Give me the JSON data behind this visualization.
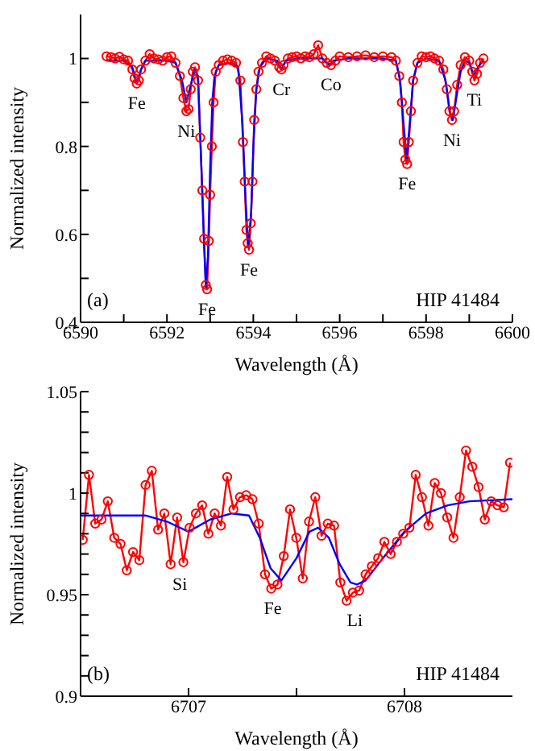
{
  "chart_data": [
    {
      "type": "line",
      "xlabel": "Wavelength (Å)",
      "ylabel": "Normalized intensity",
      "xlim": [
        6590,
        6600
      ],
      "ylim": [
        0.4,
        1.1
      ],
      "xticks": [
        6590,
        {
          "value": 6591,
          "label": null
        },
        6592,
        {
          "value": 6593,
          "label": null
        },
        6594,
        {
          "value": 6595,
          "label": null
        },
        6596,
        {
          "value": 6597,
          "label": null
        },
        6598,
        {
          "value": 6599,
          "label": null
        },
        6600
      ],
      "yticks": [
        0.4,
        {
          "value": 0.5,
          "label": null
        },
        0.6,
        {
          "value": 0.7,
          "label": null
        },
        0.8,
        {
          "value": 0.9,
          "label": null
        },
        1
      ],
      "series": [
        {
          "type": "line",
          "color": "#ff0000",
          "marker": "circle",
          "x": [
            6590.6,
            6590.7,
            6590.8,
            6590.9,
            6591.0,
            6591.1,
            6591.2,
            6591.25,
            6591.3,
            6591.35,
            6591.4,
            6591.5,
            6591.6,
            6591.7,
            6591.8,
            6591.9,
            6592.0,
            6592.1,
            6592.2,
            6592.3,
            6592.38,
            6592.45,
            6592.5,
            6592.55,
            6592.6,
            6592.65,
            6592.72,
            6592.77,
            6592.82,
            6592.86,
            6592.9,
            6592.93,
            6592.97,
            6593.0,
            6593.04,
            6593.08,
            6593.13,
            6593.2,
            6593.3,
            6593.4,
            6593.5,
            6593.6,
            6593.7,
            6593.76,
            6593.8,
            6593.84,
            6593.87,
            6593.9,
            6593.94,
            6593.98,
            6594.02,
            6594.07,
            6594.12,
            6594.2,
            6594.3,
            6594.4,
            6594.5,
            6594.6,
            6594.65,
            6594.7,
            6594.8,
            6594.9,
            6595.0,
            6595.1,
            6595.2,
            6595.3,
            6595.4,
            6595.5,
            6595.6,
            6595.7,
            6595.8,
            6595.9,
            6596.0,
            6596.2,
            6596.4,
            6596.6,
            6596.8,
            6597.0,
            6597.2,
            6597.3,
            6597.38,
            6597.44,
            6597.48,
            6597.52,
            6597.56,
            6597.6,
            6597.65,
            6597.7,
            6597.8,
            6597.9,
            6598.0,
            6598.1,
            6598.2,
            6598.3,
            6598.4,
            6598.48,
            6598.54,
            6598.6,
            6598.65,
            6598.72,
            6598.8,
            6598.9,
            6599.0,
            6599.07,
            6599.12,
            6599.18,
            6599.25,
            6599.33
          ],
          "values": [
            1.005,
            1.003,
            1.0,
            1.004,
            0.998,
            0.995,
            0.975,
            0.955,
            0.943,
            0.95,
            0.975,
            0.995,
            1.01,
            1.0,
            0.998,
            0.995,
            1.003,
            1.005,
            0.99,
            0.96,
            0.91,
            0.88,
            0.885,
            0.93,
            0.97,
            0.98,
            0.95,
            0.82,
            0.7,
            0.59,
            0.485,
            0.475,
            0.585,
            0.69,
            0.8,
            0.9,
            0.97,
            0.985,
            0.995,
            0.998,
            0.995,
            0.99,
            0.95,
            0.81,
            0.72,
            0.61,
            0.58,
            0.565,
            0.625,
            0.72,
            0.86,
            0.93,
            0.97,
            0.99,
            1.005,
            1.0,
            0.995,
            0.98,
            0.975,
            0.985,
            1.0,
            1.003,
            1.005,
            1.0,
            1.005,
            1.003,
            1.01,
            1.03,
            1.0,
            0.99,
            0.985,
            0.995,
            1.005,
            1.003,
            1.005,
            1.007,
            1.003,
            1.005,
            1.003,
            0.995,
            0.96,
            0.9,
            0.81,
            0.77,
            0.76,
            0.81,
            0.88,
            0.95,
            0.99,
            1.005,
            1.003,
            1.005,
            1.0,
            0.995,
            0.975,
            0.93,
            0.88,
            0.86,
            0.88,
            0.94,
            0.985,
            1.003,
            0.995,
            0.97,
            0.95,
            0.965,
            0.99,
            1.0
          ]
        },
        {
          "type": "line",
          "color": "#0000ff",
          "marker": "none",
          "x": [
            6590.6,
            6591.0,
            6591.2,
            6591.3,
            6591.4,
            6591.5,
            6592.0,
            6592.2,
            6592.35,
            6592.45,
            6592.55,
            6592.65,
            6592.72,
            6592.78,
            6592.85,
            6592.9,
            6592.95,
            6593.0,
            6593.05,
            6593.1,
            6593.2,
            6593.5,
            6593.65,
            6593.75,
            6593.82,
            6593.88,
            6593.95,
            6594.0,
            6594.07,
            6594.15,
            6594.3,
            6594.55,
            6594.65,
            6594.75,
            6595.0,
            6595.6,
            6595.75,
            6595.85,
            6596.2,
            6597.0,
            6597.3,
            6597.4,
            6597.48,
            6597.55,
            6597.62,
            6597.7,
            6597.8,
            6598.0,
            6598.3,
            6598.45,
            6598.55,
            6598.62,
            6598.7,
            6598.8,
            6598.9,
            6599.0,
            6599.1,
            6599.2,
            6599.33
          ],
          "values": [
            0.995,
            0.995,
            0.98,
            0.945,
            0.975,
            0.995,
            0.995,
            0.99,
            0.95,
            0.9,
            0.94,
            0.975,
            0.96,
            0.8,
            0.6,
            0.48,
            0.55,
            0.75,
            0.9,
            0.96,
            0.985,
            0.99,
            0.98,
            0.85,
            0.68,
            0.57,
            0.65,
            0.8,
            0.93,
            0.98,
            1.0,
            0.995,
            0.975,
            0.995,
            1.0,
            1.0,
            0.985,
            0.995,
            1.0,
            1.0,
            0.995,
            0.95,
            0.85,
            0.77,
            0.85,
            0.95,
            0.99,
            1.0,
            0.995,
            0.95,
            0.88,
            0.86,
            0.91,
            0.97,
            0.995,
            0.99,
            0.96,
            0.98,
            0.995
          ]
        }
      ],
      "annotations": [
        "(a)",
        "HIP 41484",
        {
          "text": "Fe",
          "x": 6591.3,
          "y": 0.943
        },
        {
          "text": "Ni",
          "x": 6592.45,
          "y": 0.88
        },
        {
          "text": "Fe",
          "x": 6592.93,
          "y": 0.475
        },
        {
          "text": "Fe",
          "x": 6593.9,
          "y": 0.565
        },
        {
          "text": "Cr",
          "x": 6594.65,
          "y": 0.975
        },
        {
          "text": "Co",
          "x": 6595.8,
          "y": 0.985
        },
        {
          "text": "Fe",
          "x": 6597.56,
          "y": 0.76
        },
        {
          "text": "Ni",
          "x": 6598.6,
          "y": 0.86
        },
        {
          "text": "Ti",
          "x": 6599.12,
          "y": 0.95
        }
      ]
    },
    {
      "type": "line",
      "xlabel": "Wavelength (Å)",
      "ylabel": "Normalized intensity",
      "xlim": [
        6706.5,
        6708.5
      ],
      "ylim": [
        0.9,
        1.05
      ],
      "xticks": [
        6707,
        {
          "value": 6707.5,
          "label": null
        },
        6708
      ],
      "yticks": [
        0.9,
        {
          "value": 0.91,
          "label": null
        },
        {
          "value": 0.92,
          "label": null
        },
        {
          "value": 0.93,
          "label": null
        },
        {
          "value": 0.94,
          "label": null
        },
        0.95,
        {
          "value": 0.96,
          "label": null
        },
        {
          "value": 0.97,
          "label": null
        },
        {
          "value": 0.98,
          "label": null
        },
        {
          "value": 0.99,
          "label": null
        },
        1,
        {
          "value": 1.01,
          "label": null
        },
        {
          "value": 1.02,
          "label": null
        },
        {
          "value": 1.03,
          "label": null
        },
        {
          "value": 1.04,
          "label": null
        },
        1.05
      ],
      "series": [
        {
          "type": "line",
          "color": "#ff0000",
          "marker": "circle",
          "x": [
            6706.51,
            6706.539,
            6706.568,
            6706.597,
            6706.626,
            6706.656,
            6706.685,
            6706.714,
            6706.743,
            6706.772,
            6706.801,
            6706.83,
            6706.859,
            6706.888,
            6706.917,
            6706.947,
            6706.976,
            6707.005,
            6707.034,
            6707.063,
            6707.092,
            6707.121,
            6707.15,
            6707.179,
            6707.208,
            6707.238,
            6707.267,
            6707.296,
            6707.325,
            6707.354,
            6707.383,
            6707.412,
            6707.441,
            6707.47,
            6707.499,
            6707.529,
            6707.558,
            6707.587,
            6707.616,
            6707.645,
            6707.674,
            6707.703,
            6707.732,
            6707.761,
            6707.79,
            6707.82,
            6707.849,
            6707.878,
            6707.907,
            6707.936,
            6707.965,
            6707.994,
            6708.023,
            6708.052,
            6708.081,
            6708.111,
            6708.14,
            6708.169,
            6708.198,
            6708.227,
            6708.256,
            6708.285,
            6708.314,
            6708.343,
            6708.372,
            6708.402,
            6708.431,
            6708.46,
            6708.489
          ],
          "values": [
            0.977,
            1.009,
            0.985,
            0.987,
            0.996,
            0.978,
            0.975,
            0.962,
            0.971,
            0.967,
            1.004,
            1.011,
            0.982,
            0.99,
            0.965,
            0.988,
            0.966,
            0.983,
            0.99,
            0.994,
            0.98,
            0.99,
            0.984,
            1.008,
            0.992,
            0.998,
            0.999,
            0.997,
            0.985,
            0.96,
            0.953,
            0.955,
            0.969,
            0.992,
            0.978,
            0.958,
            0.986,
            0.998,
            0.979,
            0.985,
            0.984,
            0.956,
            0.947,
            0.951,
            0.952,
            0.96,
            0.964,
            0.968,
            0.976,
            0.97,
            0.976,
            0.98,
            0.983,
            1.009,
            0.998,
            0.984,
            1.005,
            1.0,
            0.988,
            0.978,
            0.998,
            1.021,
            1.013,
            1.003,
            0.987,
            0.996,
            0.994,
            0.993,
            1.015
          ]
        },
        {
          "type": "line",
          "color": "#0000ff",
          "marker": "none",
          "x": [
            6706.5,
            6706.8,
            6706.9,
            6707.0,
            6707.1,
            6707.2,
            6707.28,
            6707.33,
            6707.38,
            6707.43,
            6707.5,
            6707.56,
            6707.6,
            6707.65,
            6707.7,
            6707.75,
            6707.78,
            6707.82,
            6707.9,
            6708.0,
            6708.1,
            6708.2,
            6708.3,
            6708.5
          ],
          "values": [
            0.989,
            0.989,
            0.986,
            0.981,
            0.987,
            0.99,
            0.989,
            0.978,
            0.963,
            0.957,
            0.968,
            0.981,
            0.983,
            0.978,
            0.965,
            0.956,
            0.955,
            0.957,
            0.968,
            0.981,
            0.99,
            0.994,
            0.996,
            0.997
          ]
        }
      ],
      "annotations": [
        "(b)",
        "HIP 41484",
        {
          "text": "Si",
          "x": 6706.96,
          "y": 0.965
        },
        {
          "text": "Fe",
          "x": 6707.39,
          "y": 0.953
        },
        {
          "text": "Li",
          "x": 6707.77,
          "y": 0.947
        }
      ]
    }
  ]
}
